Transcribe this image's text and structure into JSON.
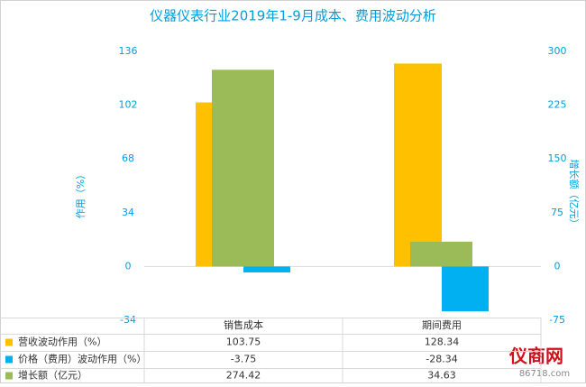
{
  "chart_data": {
    "type": "bar",
    "title": "仪器仪表行业2019年1-9月成本、费用波动分析",
    "ylabel": "作用（%）",
    "y2label": "增长额（亿元）",
    "categories": [
      "销售成本",
      "期间费用"
    ],
    "series": [
      {
        "name": "营收波动作用（%）",
        "color": "#FFC000",
        "values": [
          103.75,
          128.34
        ]
      },
      {
        "name": "价格（费用）波动作用（%）",
        "color": "#00B0F0",
        "values": [
          -3.75,
          -28.34
        ]
      },
      {
        "name": "增长额（亿元）",
        "color": "#9BBB59",
        "values": [
          274.42,
          34.63
        ],
        "axis": "y2"
      }
    ],
    "ylim": [
      -34,
      136
    ],
    "yticks": [
      -34,
      0,
      34,
      68,
      102,
      136
    ],
    "y2lim": [
      -75,
      300
    ],
    "y2ticks": [
      -75,
      0,
      75,
      150,
      225,
      300
    ],
    "grid": false,
    "logo": {
      "name": "仪商网",
      "url": "86718.com"
    }
  }
}
